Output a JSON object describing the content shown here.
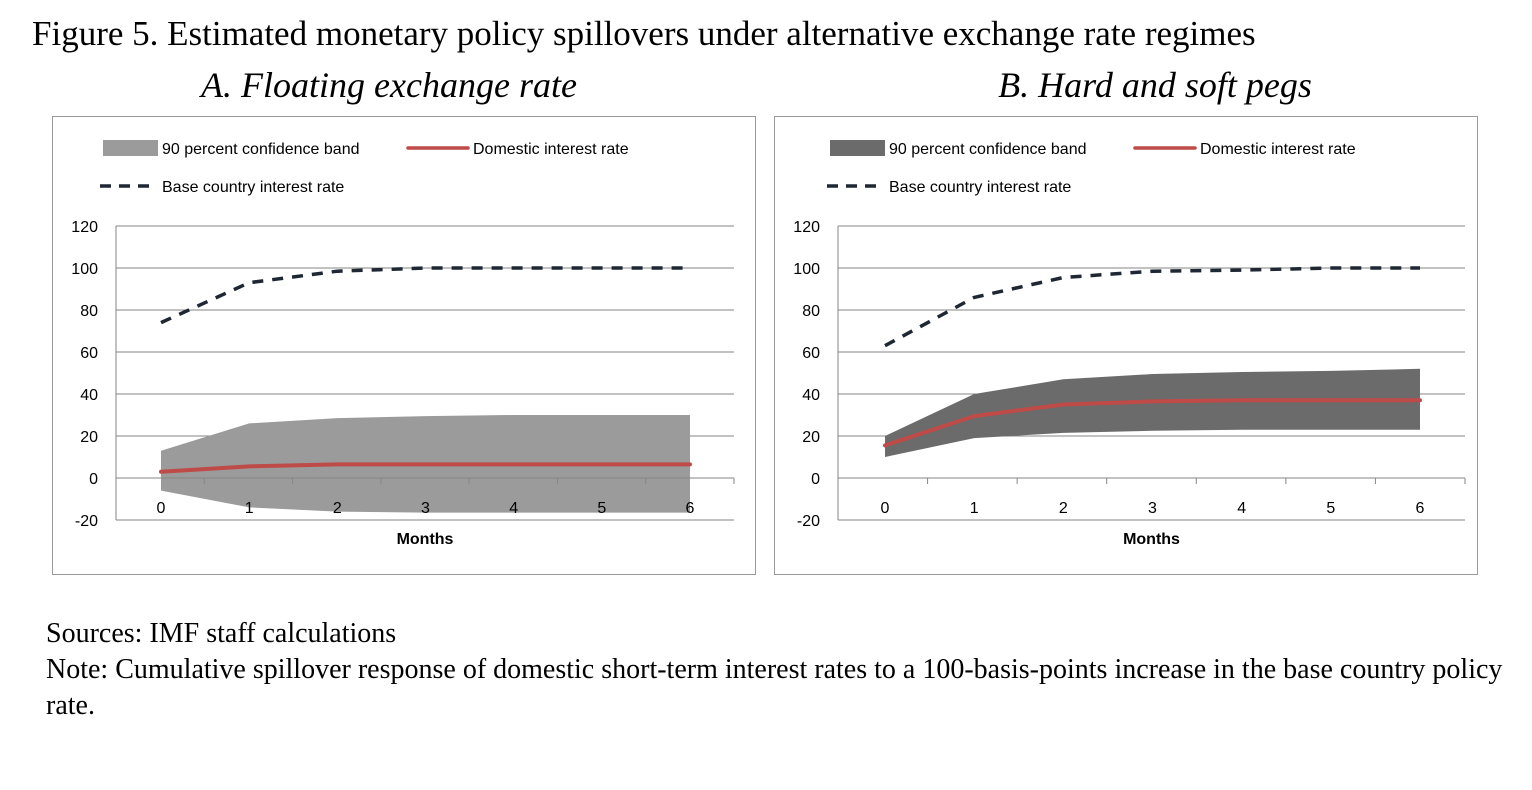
{
  "figure_title": "Figure 5. Estimated monetary policy spillovers under alternative exchange rate regimes",
  "legend": {
    "band": "90 percent confidence band",
    "domestic": "Domestic interest rate",
    "base": "Base country interest rate"
  },
  "colors": {
    "domestic": "#be4b48",
    "base": "#1f2733",
    "grid": "#868686"
  },
  "chart_data": [
    {
      "type": "area",
      "title": "A. Floating exchange rate",
      "xlabel": "Months",
      "ylabel": "",
      "x": [
        0,
        1,
        2,
        3,
        4,
        5,
        6
      ],
      "ylim": [
        -20,
        120
      ],
      "yticks": [
        -20,
        0,
        20,
        40,
        60,
        80,
        100,
        120
      ],
      "grid": true,
      "legend_position": "top",
      "band_color": "#9b9b9b",
      "series": [
        {
          "name": "90 percent confidence band",
          "lower": [
            -6,
            -14,
            -16,
            -16.5,
            -16.5,
            -16.5,
            -16.5
          ],
          "upper": [
            13,
            26,
            28.5,
            29.5,
            30,
            30,
            30
          ]
        },
        {
          "name": "Domestic interest rate",
          "values": [
            3,
            5.5,
            6.5,
            6.5,
            6.5,
            6.5,
            6.5
          ]
        },
        {
          "name": "Base country interest rate",
          "values": [
            74,
            93,
            98.5,
            100,
            100,
            100,
            100
          ]
        }
      ]
    },
    {
      "type": "area",
      "title": "B. Hard and soft pegs",
      "xlabel": "Months",
      "ylabel": "",
      "x": [
        0,
        1,
        2,
        3,
        4,
        5,
        6
      ],
      "ylim": [
        -20,
        120
      ],
      "yticks": [
        -20,
        0,
        20,
        40,
        60,
        80,
        100,
        120
      ],
      "grid": true,
      "legend_position": "top",
      "band_color": "#6b6b6b",
      "series": [
        {
          "name": "90 percent confidence band",
          "lower": [
            10,
            19,
            21.5,
            22.5,
            23,
            23,
            23
          ],
          "upper": [
            20,
            40,
            47,
            49.5,
            50.5,
            51,
            52
          ]
        },
        {
          "name": "Domestic interest rate",
          "values": [
            15.5,
            29.5,
            35,
            36.5,
            37,
            37,
            37
          ]
        },
        {
          "name": "Base country interest rate",
          "values": [
            63,
            86,
            95.5,
            98.5,
            99,
            100,
            100
          ]
        }
      ]
    }
  ],
  "sources": "Sources: IMF staff calculations",
  "note": "Note: Cumulative spillover response of domestic short-term interest rates to a 100-basis-points increase in the base country policy rate."
}
